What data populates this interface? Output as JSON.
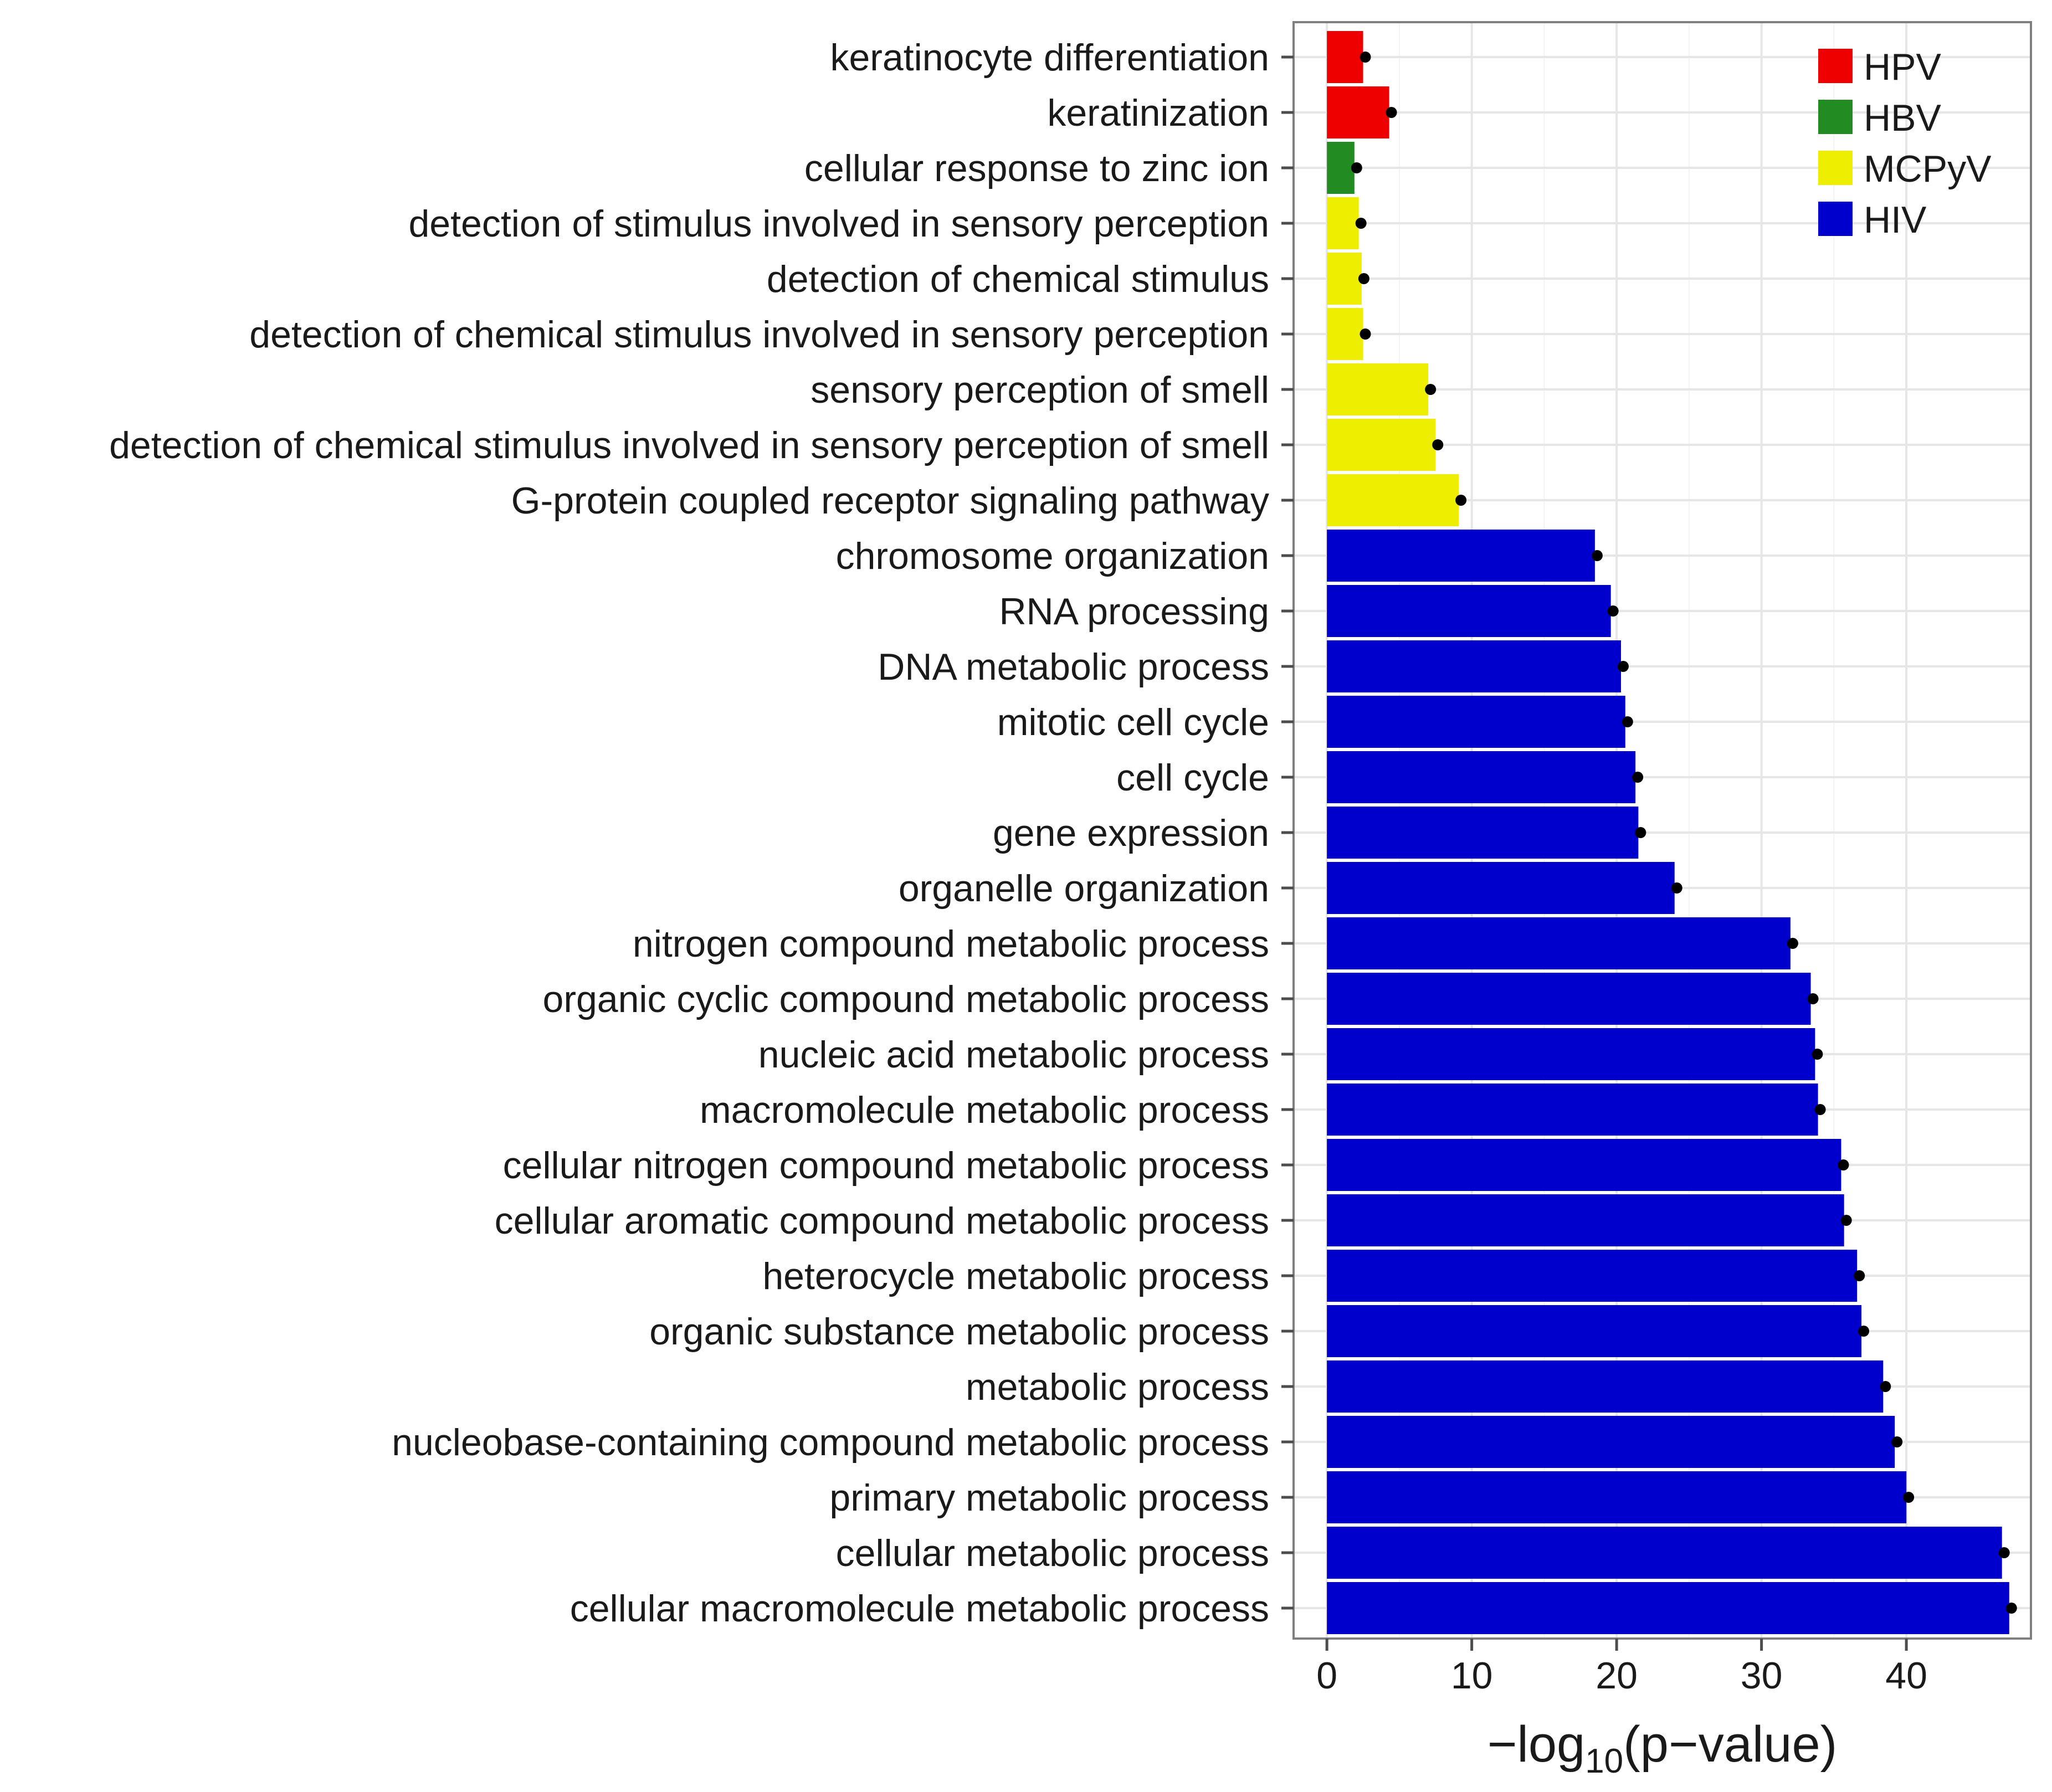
{
  "chart_data": {
    "type": "bar",
    "orientation": "horizontal",
    "xlabel": "−log10(p−value)",
    "xlabel_parts": {
      "prefix": "−log",
      "subscript": "10",
      "suffix": "(p−value)"
    },
    "xlim": [
      -2.3,
      48.6
    ],
    "xticks": [
      0,
      10,
      20,
      30,
      40
    ],
    "grid": true,
    "legend_position": "top-right",
    "series": [
      {
        "name": "HPV",
        "color": "#ee0000"
      },
      {
        "name": "HBV",
        "color": "#228b22"
      },
      {
        "name": "MCPyV",
        "color": "#eeee00"
      },
      {
        "name": "HIV",
        "color": "#0000cd"
      }
    ],
    "bars": [
      {
        "label": "keratinocyte differentiation",
        "value": 2.5,
        "group": "HPV"
      },
      {
        "label": "keratinization",
        "value": 4.3,
        "group": "HPV"
      },
      {
        "label": "cellular response to zinc ion",
        "value": 1.9,
        "group": "HBV"
      },
      {
        "label": "detection of stimulus involved in sensory perception",
        "value": 2.2,
        "group": "MCPyV"
      },
      {
        "label": "detection of chemical stimulus",
        "value": 2.4,
        "group": "MCPyV"
      },
      {
        "label": "detection of chemical stimulus involved in sensory perception",
        "value": 2.5,
        "group": "MCPyV"
      },
      {
        "label": "sensory perception of smell",
        "value": 7.0,
        "group": "MCPyV"
      },
      {
        "label": "detection of chemical stimulus involved in sensory perception of smell",
        "value": 7.5,
        "group": "MCPyV"
      },
      {
        "label": "G-protein coupled receptor signaling pathway",
        "value": 9.1,
        "group": "MCPyV"
      },
      {
        "label": "chromosome organization",
        "value": 18.5,
        "group": "HIV"
      },
      {
        "label": "RNA processing",
        "value": 19.6,
        "group": "HIV"
      },
      {
        "label": "DNA metabolic process",
        "value": 20.3,
        "group": "HIV"
      },
      {
        "label": "mitotic cell cycle",
        "value": 20.6,
        "group": "HIV"
      },
      {
        "label": "cell cycle",
        "value": 21.3,
        "group": "HIV"
      },
      {
        "label": "gene expression",
        "value": 21.5,
        "group": "HIV"
      },
      {
        "label": "organelle organization",
        "value": 24.0,
        "group": "HIV"
      },
      {
        "label": "nitrogen compound metabolic process",
        "value": 32.0,
        "group": "HIV"
      },
      {
        "label": "organic cyclic compound metabolic process",
        "value": 33.4,
        "group": "HIV"
      },
      {
        "label": "nucleic acid metabolic process",
        "value": 33.7,
        "group": "HIV"
      },
      {
        "label": "macromolecule metabolic process",
        "value": 33.9,
        "group": "HIV"
      },
      {
        "label": "cellular nitrogen compound metabolic process",
        "value": 35.5,
        "group": "HIV"
      },
      {
        "label": "cellular aromatic compound metabolic process",
        "value": 35.7,
        "group": "HIV"
      },
      {
        "label": "heterocycle metabolic process",
        "value": 36.6,
        "group": "HIV"
      },
      {
        "label": "organic substance metabolic process",
        "value": 36.9,
        "group": "HIV"
      },
      {
        "label": "metabolic process",
        "value": 38.4,
        "group": "HIV"
      },
      {
        "label": "nucleobase-containing compound metabolic process",
        "value": 39.2,
        "group": "HIV"
      },
      {
        "label": "primary metabolic process",
        "value": 40.0,
        "group": "HIV"
      },
      {
        "label": "cellular metabolic process",
        "value": 46.6,
        "group": "HIV"
      },
      {
        "label": "cellular macromolecule metabolic process",
        "value": 47.1,
        "group": "HIV"
      }
    ]
  }
}
